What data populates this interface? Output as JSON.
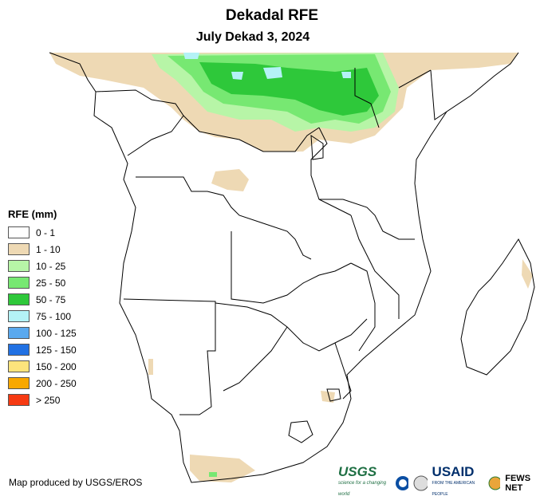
{
  "header": {
    "title": "Dekadal RFE",
    "subtitle": "July Dekad 3, 2024"
  },
  "legend": {
    "title": "RFE (mm)",
    "items": [
      {
        "label": "0 - 1",
        "color": "#ffffff"
      },
      {
        "label": "1 - 10",
        "color": "#eed9b4"
      },
      {
        "label": "10 - 25",
        "color": "#b7f5a7"
      },
      {
        "label": "25 - 50",
        "color": "#77e872"
      },
      {
        "label": "50 - 75",
        "color": "#2ec83a"
      },
      {
        "label": "75 - 100",
        "color": "#b4f2f6"
      },
      {
        "label": "100 - 125",
        "color": "#5aa9ee"
      },
      {
        "label": "125 - 150",
        "color": "#2171e3"
      },
      {
        "label": "150 - 200",
        "color": "#fde47c"
      },
      {
        "label": "200 - 250",
        "color": "#f8a800"
      },
      {
        "label": "> 250",
        "color": "#f63a12"
      }
    ]
  },
  "footer": {
    "credit": "Map produced by USGS/EROS",
    "usgs": "USGS",
    "usgs_tagline": "science for a changing world",
    "usaid": "USAID",
    "usaid_tagline": "FROM THE AMERICAN PEOPLE",
    "fews": "FEWS NET"
  }
}
